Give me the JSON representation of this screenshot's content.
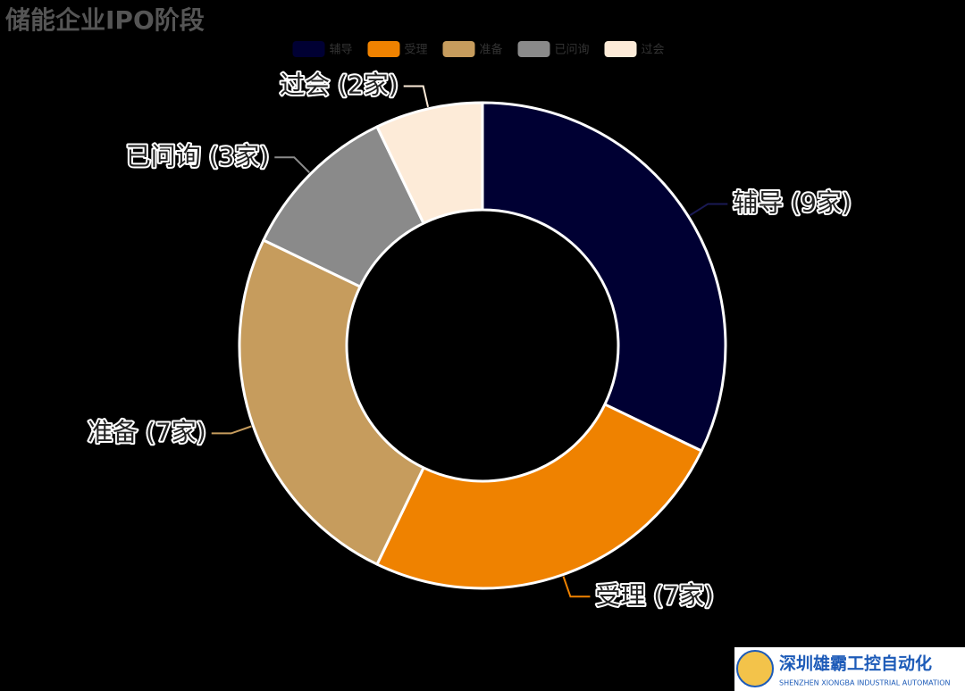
{
  "chart_data": {
    "type": "donut",
    "title": "储能企业IPO阶段",
    "categories": [
      "辅导",
      "受理",
      "准备",
      "已问询",
      "过会"
    ],
    "values": [
      9,
      7,
      7,
      3,
      2
    ],
    "value_labels": [
      "辅导 (9家)",
      "受理 (7家)",
      "准备 (7家)",
      "已问询 (3家)",
      "过会 (2家)"
    ],
    "colors": [
      "#000033",
      "#ef8200",
      "#c69c5d",
      "#8a8a8a",
      "#fdebd8"
    ],
    "legend": "top"
  },
  "watermark": {
    "name": "深圳雄霸工控自动化",
    "subtitle": "SHENZHEN XIONGBA INDUSTRIAL AUTOMATION"
  }
}
